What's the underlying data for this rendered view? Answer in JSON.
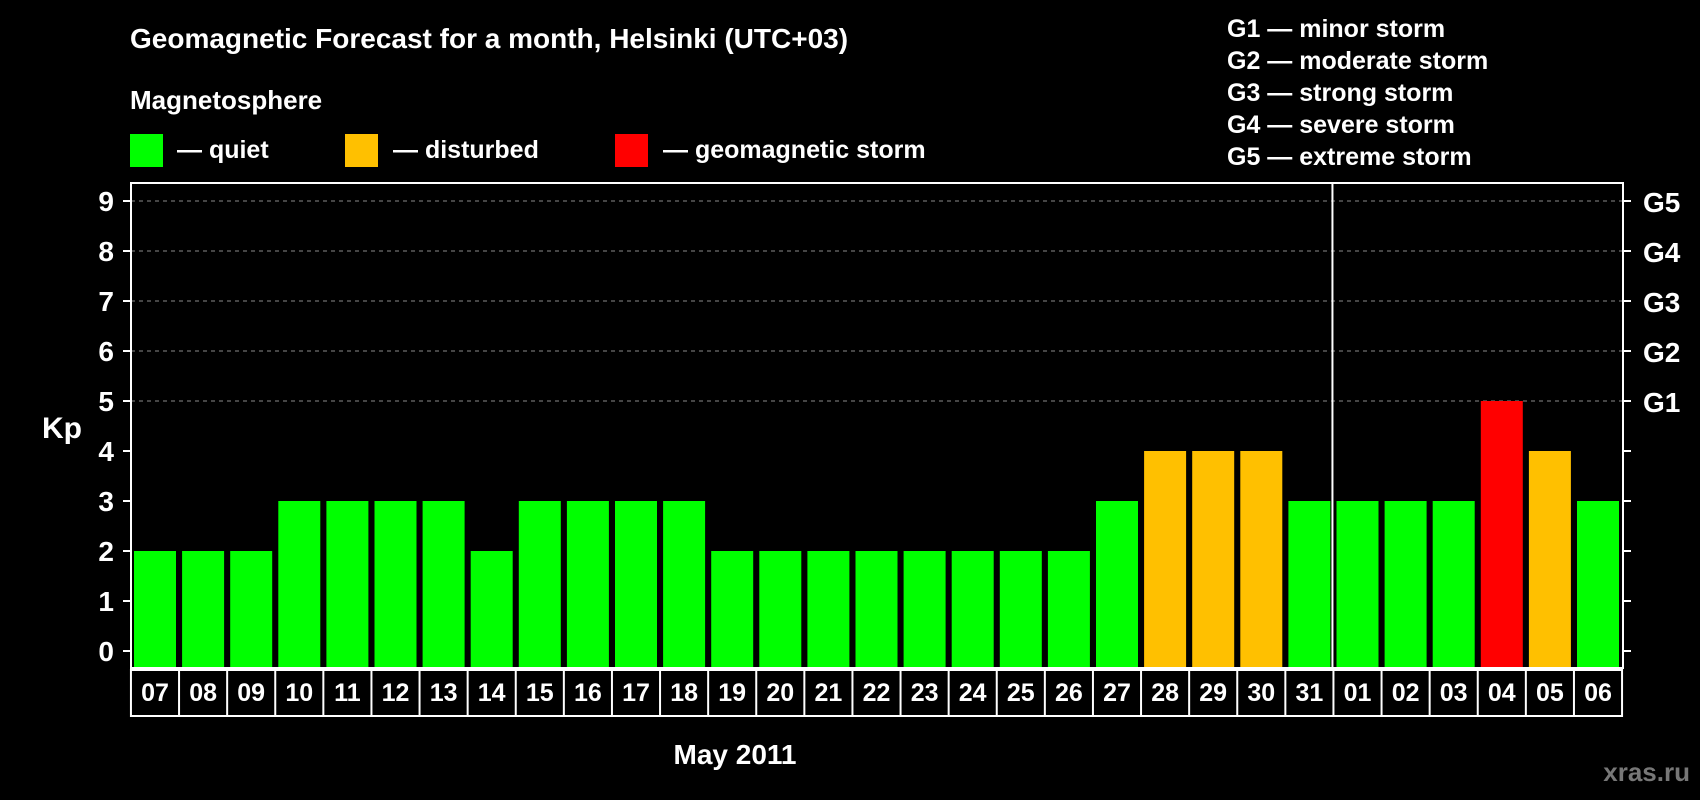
{
  "colors": {
    "quiet": "#00ff00",
    "disturbed": "#ffc000",
    "storm": "#ff0000",
    "background": "#000000",
    "foreground": "#ffffff",
    "watermark": "#777777"
  },
  "legend": {
    "section_title": "Magnetosphere",
    "quiet_label": "— quiet",
    "disturbed_label": "— disturbed",
    "storm_label": "— geomagnetic storm"
  },
  "storm_scale": [
    "G1 — minor storm",
    "G2 — moderate storm",
    "G3 — strong storm",
    "G4 — severe storm",
    "G5 — extreme storm"
  ],
  "watermark": "xras.ru",
  "chart_data": {
    "type": "bar",
    "title": "Geomagnetic Forecast for a month, Helsinki (UTC+03)",
    "xlabel": "May 2011",
    "ylabel": "Kp",
    "ylim": [
      0,
      9
    ],
    "yticks": [
      0,
      1,
      2,
      3,
      4,
      5,
      6,
      7,
      8,
      9
    ],
    "right_axis_labels": [
      {
        "kp": 5,
        "label": "G1"
      },
      {
        "kp": 6,
        "label": "G2"
      },
      {
        "kp": 7,
        "label": "G3"
      },
      {
        "kp": 8,
        "label": "G4"
      },
      {
        "kp": 9,
        "label": "G5"
      }
    ],
    "grid": "dashed horizontal lines at Kp 5 to 9",
    "month_separator_after": "31",
    "categories": [
      "07",
      "08",
      "09",
      "10",
      "11",
      "12",
      "13",
      "14",
      "15",
      "16",
      "17",
      "18",
      "19",
      "20",
      "21",
      "22",
      "23",
      "24",
      "25",
      "26",
      "27",
      "28",
      "29",
      "30",
      "31",
      "01",
      "02",
      "03",
      "04",
      "05",
      "06"
    ],
    "values": [
      2,
      2,
      2,
      3,
      3,
      3,
      3,
      2,
      3,
      3,
      3,
      3,
      2,
      2,
      2,
      2,
      2,
      2,
      2,
      2,
      3,
      4,
      4,
      4,
      3,
      3,
      3,
      3,
      5,
      4,
      3
    ],
    "status": [
      "quiet",
      "quiet",
      "quiet",
      "quiet",
      "quiet",
      "quiet",
      "quiet",
      "quiet",
      "quiet",
      "quiet",
      "quiet",
      "quiet",
      "quiet",
      "quiet",
      "quiet",
      "quiet",
      "quiet",
      "quiet",
      "quiet",
      "quiet",
      "quiet",
      "disturbed",
      "disturbed",
      "disturbed",
      "quiet",
      "quiet",
      "quiet",
      "quiet",
      "storm",
      "disturbed",
      "quiet"
    ]
  }
}
